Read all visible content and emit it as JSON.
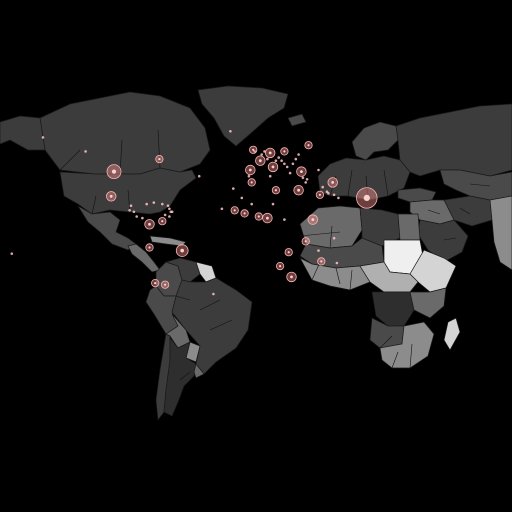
{
  "map": {
    "background_color": "#000000",
    "ocean_color": "#000000",
    "bubble_color": "#f08c8c",
    "shade_scale": [
      "#2e2e2e",
      "#3c3c3c",
      "#4a4a4a",
      "#6a6a6a",
      "#8c8c8c",
      "#b0b0b0",
      "#d4d4d4",
      "#efefef"
    ]
  },
  "regions": [
    {
      "id": "greenland"
    },
    {
      "id": "canada"
    },
    {
      "id": "usa"
    },
    {
      "id": "alaska"
    },
    {
      "id": "mexico"
    },
    {
      "id": "central-america"
    },
    {
      "id": "caribbean"
    },
    {
      "id": "venezuela"
    },
    {
      "id": "colombia"
    },
    {
      "id": "guianas"
    },
    {
      "id": "brazil"
    },
    {
      "id": "peru"
    },
    {
      "id": "bolivia"
    },
    {
      "id": "paraguay"
    },
    {
      "id": "argentina"
    },
    {
      "id": "chile"
    },
    {
      "id": "uruguay"
    },
    {
      "id": "iceland"
    },
    {
      "id": "scandinavia"
    },
    {
      "id": "europe"
    },
    {
      "id": "russia"
    },
    {
      "id": "turkey"
    },
    {
      "id": "middle-east"
    },
    {
      "id": "arabia"
    },
    {
      "id": "iran"
    },
    {
      "id": "north-africa-west"
    },
    {
      "id": "libya"
    },
    {
      "id": "egypt"
    },
    {
      "id": "sahel"
    },
    {
      "id": "west-africa"
    },
    {
      "id": "sudan"
    },
    {
      "id": "ethiopia"
    },
    {
      "id": "central-africa"
    },
    {
      "id": "drc"
    },
    {
      "id": "east-africa"
    },
    {
      "id": "angola"
    },
    {
      "id": "southern-africa"
    },
    {
      "id": "madagascar"
    },
    {
      "id": "central-asia"
    },
    {
      "id": "south-asia"
    }
  ],
  "bubbles": [
    {
      "lon": -100,
      "lat": 39,
      "size": 5
    },
    {
      "lon": -102,
      "lat": 23,
      "size": 3
    },
    {
      "lon": -75,
      "lat": 5,
      "size": 3
    },
    {
      "lon": -52,
      "lat": -12,
      "size": 4
    },
    {
      "lon": -75,
      "lat": -10,
      "size": 2
    },
    {
      "lon": -64,
      "lat": -34,
      "size": 2
    },
    {
      "lon": -71,
      "lat": -33,
      "size": 2
    },
    {
      "lon": -66,
      "lat": 7,
      "size": 2
    },
    {
      "lon": 3,
      "lat": 46,
      "size": 3
    },
    {
      "lon": 12,
      "lat": 42,
      "size": 3
    },
    {
      "lon": -4,
      "lat": 40,
      "size": 3
    },
    {
      "lon": 10,
      "lat": 51,
      "size": 3
    },
    {
      "lon": -2,
      "lat": 53,
      "size": 2
    },
    {
      "lon": 20,
      "lat": 52,
      "size": 2
    },
    {
      "lon": 32,
      "lat": 39,
      "size": 3
    },
    {
      "lon": 54,
      "lat": 32,
      "size": 3
    },
    {
      "lon": 45,
      "lat": 24,
      "size": 2
    },
    {
      "lon": 30,
      "lat": 27,
      "size": 3
    },
    {
      "lon": 8,
      "lat": 9,
      "size": 3
    },
    {
      "lon": 25,
      "lat": -29,
      "size": 3
    },
    {
      "lon": 40,
      "lat": 8,
      "size": 3
    },
    {
      "lon": 78,
      "lat": 22,
      "size": 8
    },
    {
      "lon": 37,
      "lat": 56,
      "size": 2
    },
    {
      "lon": -68,
      "lat": 47,
      "size": 2
    },
    {
      "lon": -3,
      "lat": 32,
      "size": 2
    },
    {
      "lon": 14,
      "lat": 27,
      "size": 2
    },
    {
      "lon": -15,
      "lat": 14,
      "size": 2
    },
    {
      "lon": 23,
      "lat": -13,
      "size": 2
    },
    {
      "lon": 35,
      "lat": -6,
      "size": 2
    },
    {
      "lon": 17,
      "lat": -22,
      "size": 2
    },
    {
      "lon": 46,
      "lat": -19,
      "size": 2
    },
    {
      "lon": -8,
      "lat": 12,
      "size": 2
    },
    {
      "lon": 2,
      "lat": 10,
      "size": 2
    }
  ],
  "small_dots": [
    [
      -62,
      17
    ],
    [
      -61,
      15
    ],
    [
      -60,
      13
    ],
    [
      -77,
      18
    ],
    [
      -72,
      19
    ],
    [
      -66,
      18
    ],
    [
      -88,
      17
    ],
    [
      -89,
      14
    ],
    [
      -86,
      13
    ],
    [
      -84,
      10
    ],
    [
      -80,
      9
    ],
    [
      -64,
      11
    ],
    [
      -61,
      10
    ],
    [
      -59,
      13
    ],
    [
      -120,
      52
    ],
    [
      -150,
      61
    ],
    [
      -18,
      65
    ],
    [
      -30,
      -40
    ],
    [
      -1,
      52
    ],
    [
      4,
      50
    ],
    [
      6,
      52
    ],
    [
      8,
      47
    ],
    [
      14,
      46
    ],
    [
      16,
      48
    ],
    [
      18,
      46
    ],
    [
      20,
      44
    ],
    [
      22,
      42
    ],
    [
      24,
      38
    ],
    [
      26,
      44
    ],
    [
      28,
      47
    ],
    [
      30,
      50
    ],
    [
      33,
      35
    ],
    [
      35,
      32
    ],
    [
      36,
      34
    ],
    [
      44,
      40
    ],
    [
      47,
      29
    ],
    [
      50,
      26
    ],
    [
      51,
      25
    ],
    [
      55,
      24
    ],
    [
      58,
      22
    ],
    [
      -5,
      36
    ],
    [
      10,
      36
    ],
    [
      -16,
      28
    ],
    [
      -24,
      15
    ],
    [
      55,
      -4
    ],
    [
      57,
      -20
    ],
    [
      44,
      -12
    ],
    [
      -172,
      -14
    ],
    [
      -40,
      36
    ],
    [
      -10,
      22
    ],
    [
      -3,
      18
    ],
    [
      12,
      18
    ],
    [
      20,
      8
    ]
  ]
}
